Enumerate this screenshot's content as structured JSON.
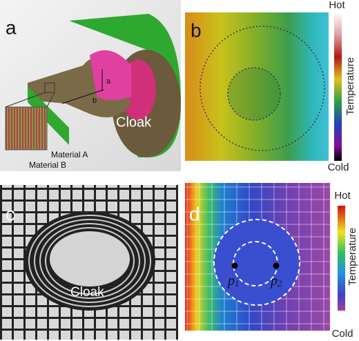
{
  "panels": [
    {
      "label": "a",
      "cloak": "Cloak",
      "material_a": "Material A",
      "material_b": "Material B",
      "dim_a": "a",
      "dim_b": "b"
    },
    {
      "label": "b",
      "hot": "Hot",
      "cold": "Cold",
      "colorbar_title": "Temperature"
    },
    {
      "label": "c",
      "cloak": "Cloak"
    },
    {
      "label": "d",
      "hot": "Hot",
      "cold": "Cold",
      "colorbar_title": "Temperature",
      "points": [
        {
          "name": "p",
          "sub": "1"
        },
        {
          "name": "p",
          "sub": "2"
        }
      ]
    }
  ]
}
